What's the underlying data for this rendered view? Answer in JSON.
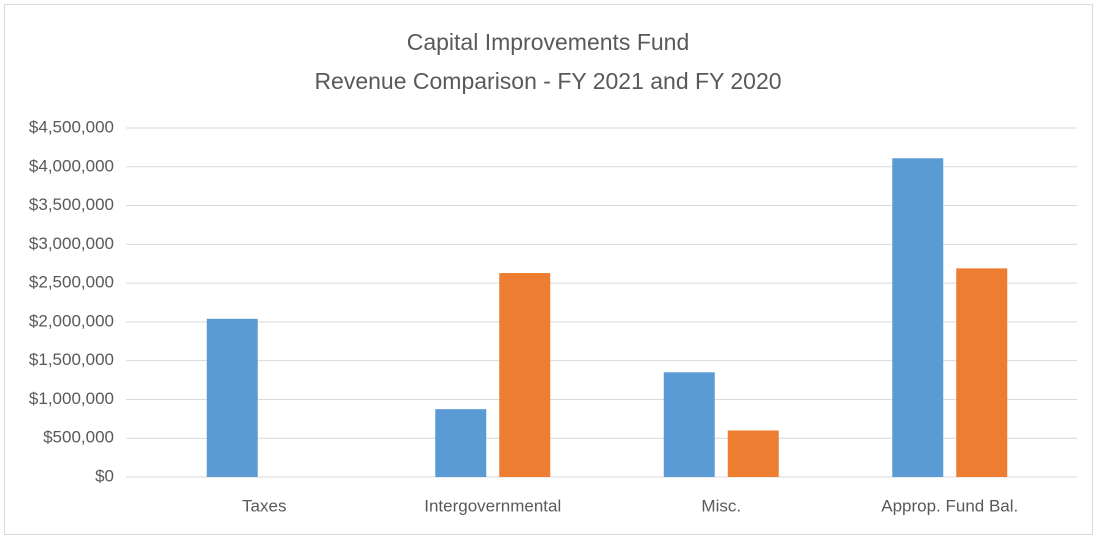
{
  "chart_data": {
    "type": "bar",
    "title": "Capital Improvements Fund",
    "subtitle": "Revenue Comparison - FY 2021 and FY 2020",
    "categories": [
      "Taxes",
      "Intergovernmental",
      "Misc.",
      "Approp. Fund Bal."
    ],
    "series": [
      {
        "color": "#5b9bd5",
        "values": [
          2040000,
          875000,
          1350000,
          4110000
        ]
      },
      {
        "color": "#ed7d31",
        "values": [
          0,
          2630000,
          600000,
          2690000
        ]
      }
    ],
    "ylim": [
      0,
      4500000
    ],
    "yticks": [
      {
        "value": 0,
        "label": "$0"
      },
      {
        "value": 500000,
        "label": "$500,000"
      },
      {
        "value": 1000000,
        "label": "$1,000,000"
      },
      {
        "value": 1500000,
        "label": "$1,500,000"
      },
      {
        "value": 2000000,
        "label": "$2,000,000"
      },
      {
        "value": 2500000,
        "label": "$2,500,000"
      },
      {
        "value": 3000000,
        "label": "$3,000,000"
      },
      {
        "value": 3500000,
        "label": "$3,500,000"
      },
      {
        "value": 4000000,
        "label": "$4,000,000"
      },
      {
        "value": 4500000,
        "label": "$4,500,000"
      }
    ],
    "grid": true
  }
}
